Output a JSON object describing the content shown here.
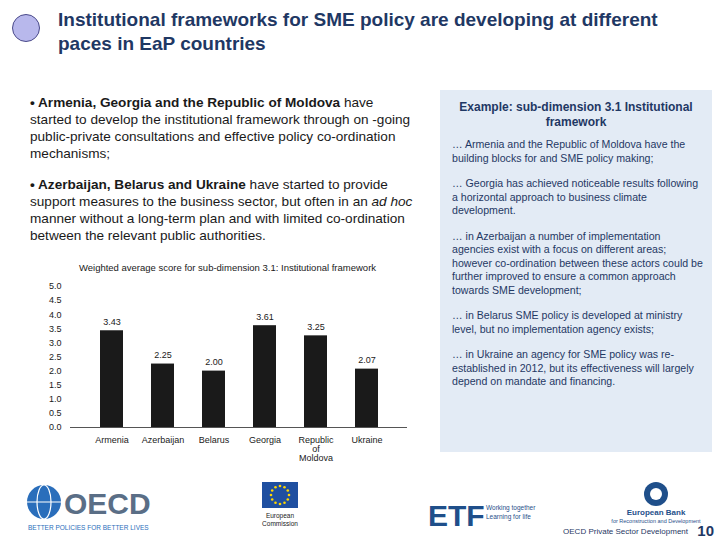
{
  "title": "Institutional frameworks for SME policy are developing at different paces in EaP countries",
  "bullets": [
    [
      {
        "text": "• Armenia, Georgia and the Republic of Moldova",
        "bold": true
      },
      {
        "text": " have started to develop the institutional framework through on -going public-private consultations and effective policy co-ordination mechanisms;"
      }
    ],
    [
      {
        "text": "• Azerbaijan, Belarus and Ukraine",
        "bold": true
      },
      {
        "text": " have started to provide support measures to the business sector, but often in an "
      },
      {
        "text": "ad hoc",
        "italic": true
      },
      {
        "text": " manner without a long-term plan and with limited co-ordination between the relevant public authorities."
      }
    ]
  ],
  "example": {
    "title": "Example: sub-dimension 3.1 Institutional framework",
    "paragraphs": [
      "… Armenia and the Republic of Moldova have the building blocks for and SME policy making;",
      "… Georgia has achieved noticeable results following a horizontal approach to business climate development.",
      "… in Azerbaijan a number of implementation agencies exist with a focus on different areas; however co-ordination between these actors could be further improved to ensure a common approach towards SME development;",
      "… in Belarus SME policy is developed at ministry level, but no implementation agency exists;",
      "… in Ukraine an agency for SME policy was re-established in 2012, but its effectiveness will largely depend on mandate and financing."
    ]
  },
  "footer": {
    "oecd": "OECD",
    "oecd_tagline": "BETTER POLICIES FOR BETTER LIVES",
    "ec": [
      "European",
      "Commission"
    ],
    "etf": "ETF",
    "etf_tagline": [
      "Working together",
      "Learning for life"
    ],
    "ebrd": [
      "European Bank",
      "for Reconstruction and Development"
    ],
    "source": "OECD Private Sector Development",
    "page": "10"
  },
  "chart_data": {
    "type": "bar",
    "title": "Weighted average score for sub-dimension 3.1: Institutional framework",
    "categories": [
      "Armenia",
      "Azerbaijan",
      "Belarus",
      "Georgia",
      "Republic of Moldova",
      "Ukraine"
    ],
    "values": [
      3.43,
      2.25,
      2.0,
      3.61,
      3.25,
      2.07
    ],
    "value_labels": [
      "3.43",
      "2.25",
      "2.00",
      "3.61",
      "3.25",
      "2.07"
    ],
    "data_labels": true,
    "color": "#1a1a1a",
    "ylim": [
      0,
      5
    ],
    "yticks": [
      0,
      0.5,
      1,
      1.5,
      2,
      2.5,
      3,
      3.5,
      4,
      4.5,
      5
    ],
    "grid": false
  }
}
